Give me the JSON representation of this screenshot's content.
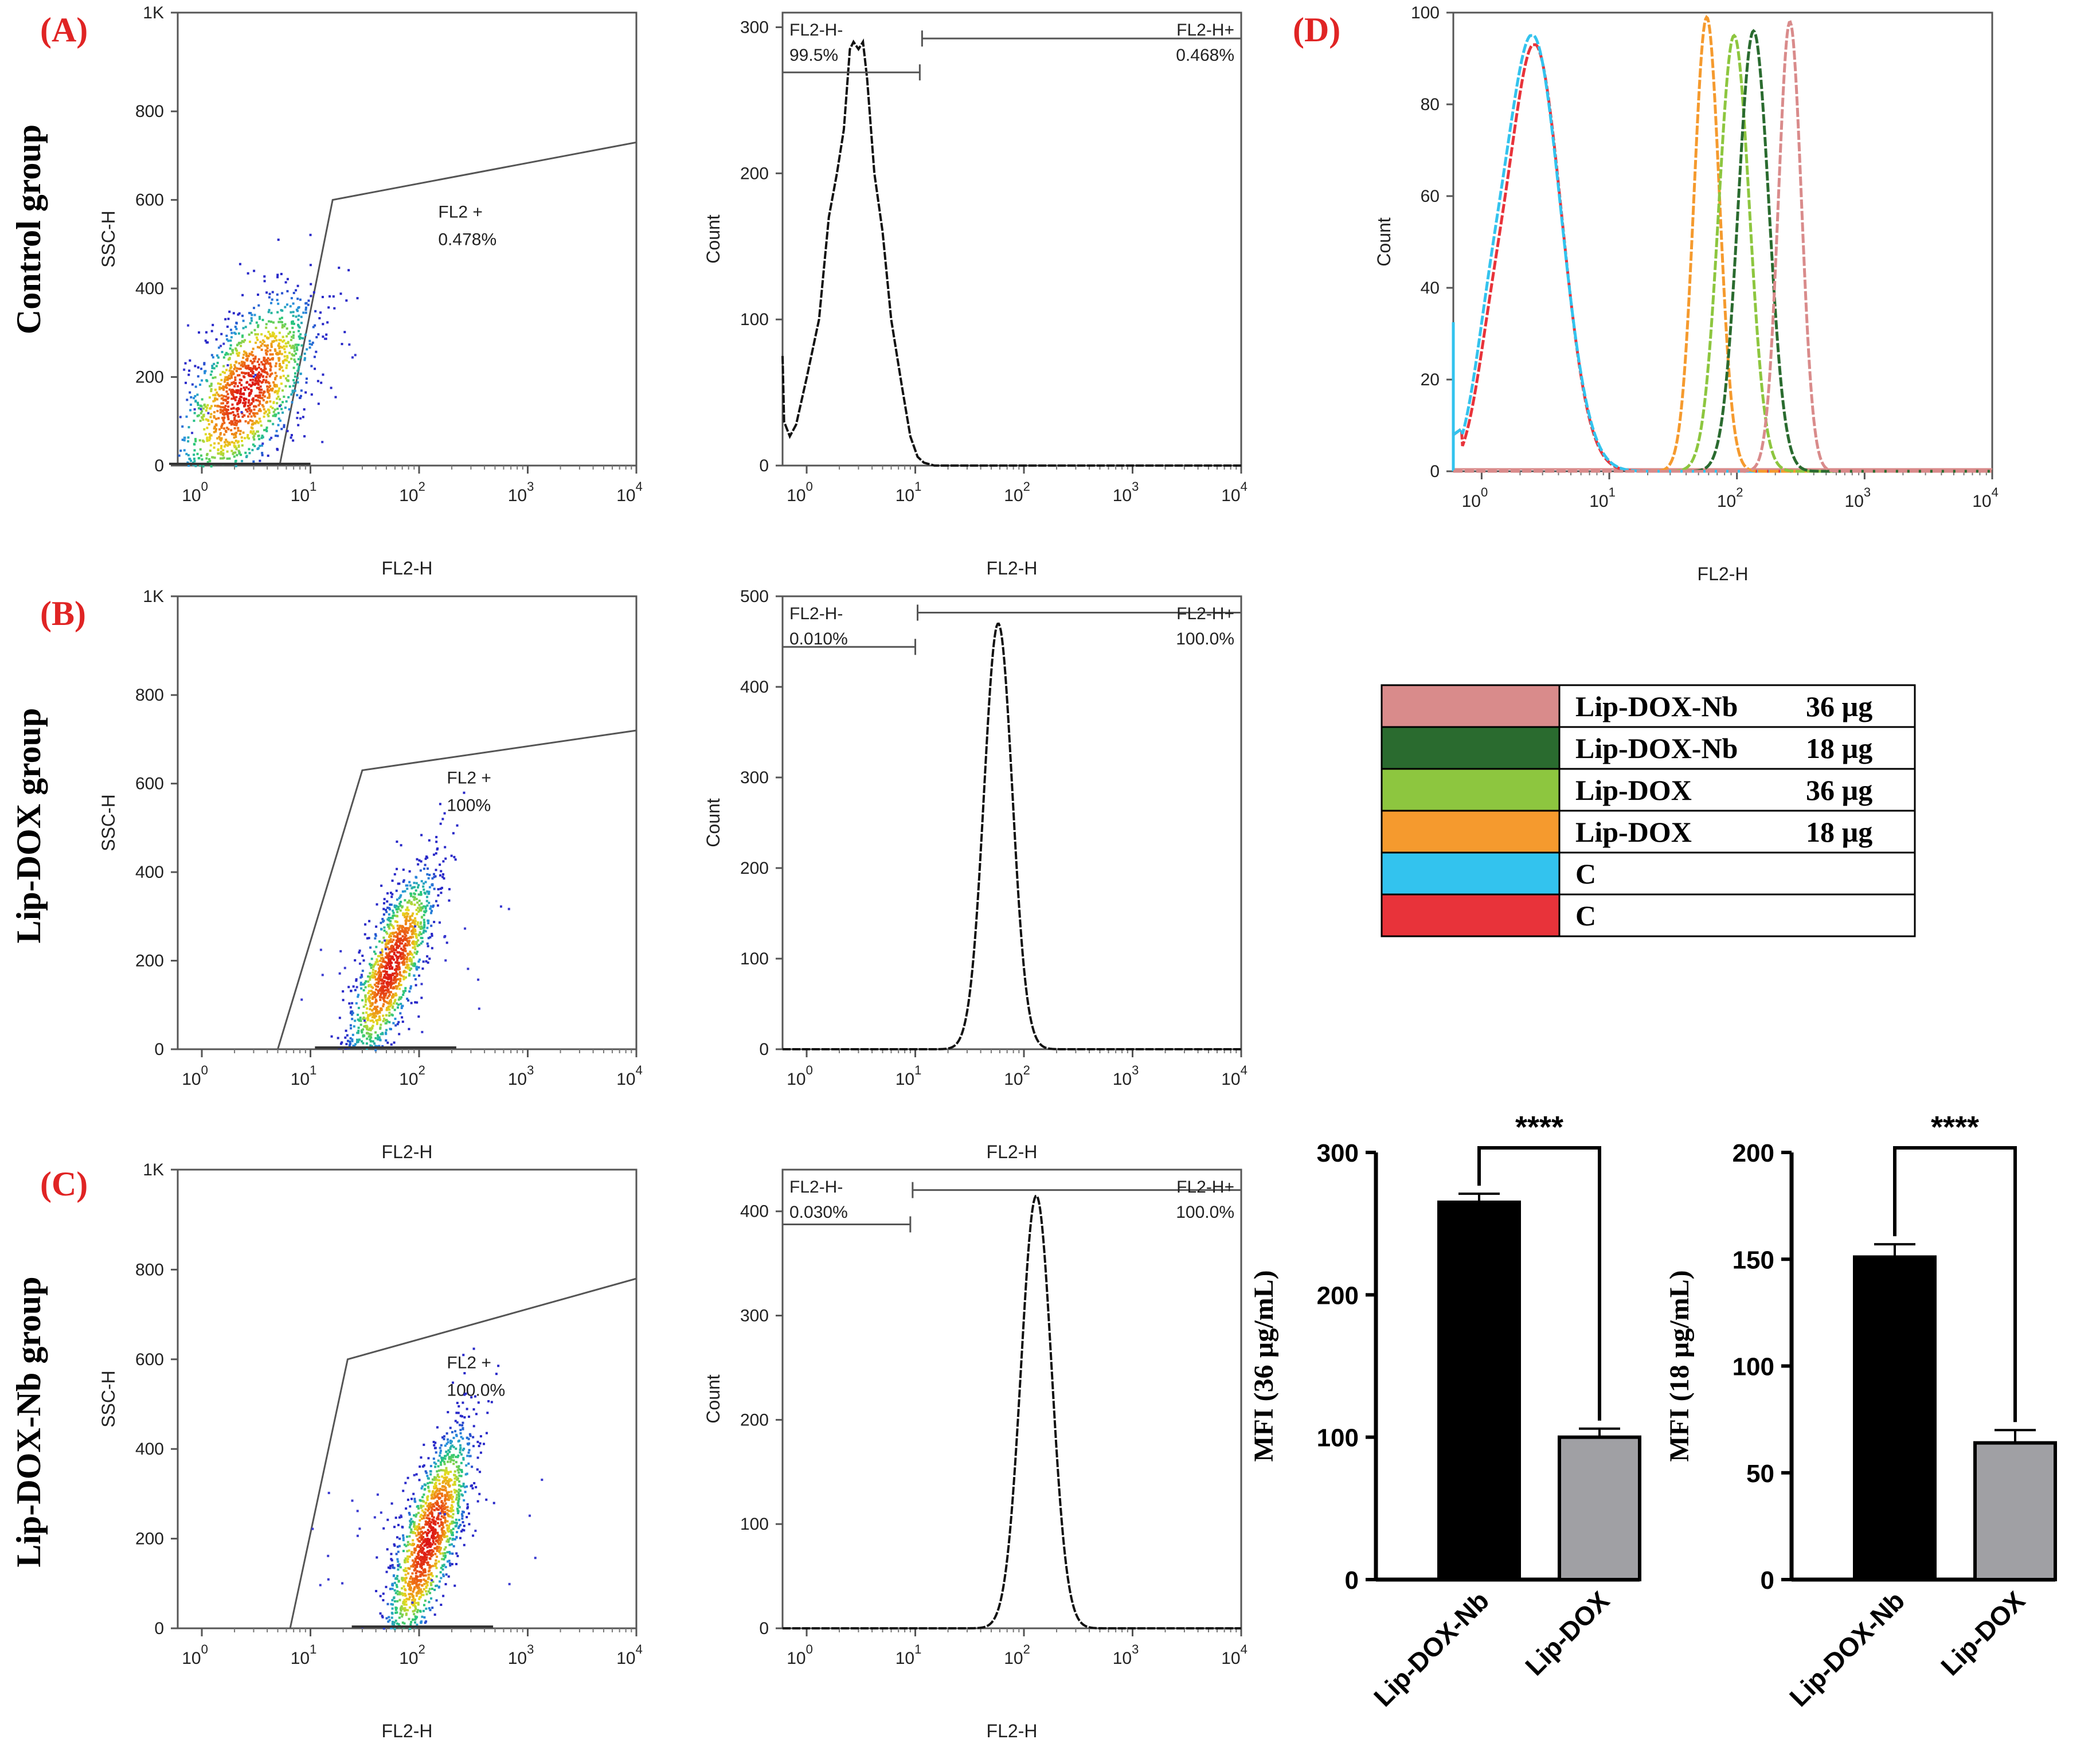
{
  "panel_labels": {
    "a": "(A)",
    "b": "(B)",
    "c": "(C)",
    "d": "(D)"
  },
  "row_labels": [
    "Control group",
    "Lip-DOX group",
    "Lip-DOX-Nb group"
  ],
  "colors": {
    "panel_label": "#e02424",
    "c_red": "#e8333a",
    "c_blue": "#33c3ee",
    "lipdox18": "#f59a2e",
    "lipdox36": "#8dc63f",
    "lipdoxnb18": "#2a6b2f",
    "lipdoxnb36": "#d98b8b",
    "bar_nb": "#000000",
    "bar_dox": "#a0a0a4"
  },
  "chart_data": [
    {
      "id": "scatter-control",
      "type": "scatter",
      "xlabel": "FL2-H",
      "ylabel": "SSC-H",
      "x_scale": "log",
      "xlim": [
        0.6,
        10000
      ],
      "ylim": [
        0,
        1023
      ],
      "xticks": [
        "10",
        "10",
        "10",
        "10",
        "10"
      ],
      "xtick_exponents": [
        "0",
        "1",
        "2",
        "3",
        "4"
      ],
      "yticks": [
        "0",
        "200",
        "400",
        "600",
        "800",
        "1K"
      ],
      "gate_label": "FL2 +",
      "gate_percent": "0.478%",
      "gate_polygon": [
        [
          5.2,
          0
        ],
        [
          16,
          600
        ],
        [
          10000,
          730
        ],
        [
          10000,
          680
        ]
      ],
      "cluster": {
        "center_x": 2.5,
        "center_y": 170,
        "spread_log_x": 0.32,
        "spread_y": 70,
        "corr": 0.6,
        "n": 1400
      }
    },
    {
      "id": "hist-control",
      "type": "line",
      "xlabel": "FL2-H",
      "ylabel": "Count",
      "x_scale": "log",
      "xlim": [
        0.6,
        10000
      ],
      "ylim": [
        0,
        310
      ],
      "yticks": [
        "0",
        "100",
        "200",
        "300"
      ],
      "xticks": [
        "10",
        "10",
        "10",
        "10",
        "10"
      ],
      "xtick_exponents": [
        "0",
        "1",
        "2",
        "3",
        "4"
      ],
      "neg_label": "FL2-H-",
      "neg_percent": "99.5%",
      "pos_label": "FL2-H+",
      "pos_percent": "0.468%",
      "gate_split": 11,
      "gate_level": 285,
      "x": [
        0.6,
        0.62,
        0.7,
        0.8,
        1.0,
        1.3,
        1.6,
        1.9,
        2.2,
        2.5,
        2.7,
        3.0,
        3.3,
        3.6,
        4.2,
        5.0,
        6.0,
        7.5,
        9.0,
        10.5,
        12,
        15,
        10000
      ],
      "y": [
        75,
        30,
        20,
        28,
        60,
        100,
        170,
        200,
        230,
        285,
        290,
        285,
        290,
        265,
        200,
        160,
        100,
        55,
        20,
        6,
        2,
        0,
        0
      ]
    },
    {
      "id": "overlay-d",
      "type": "line",
      "xlabel": "FL2-H",
      "ylabel": "Count",
      "x_scale": "log",
      "xlim": [
        0.6,
        10000
      ],
      "ylim": [
        0,
        100
      ],
      "yticks": [
        "0",
        "20",
        "40",
        "60",
        "80",
        "100"
      ],
      "xticks": [
        "10",
        "10",
        "10",
        "10",
        "10"
      ],
      "xtick_exponents": [
        "0",
        "1",
        "2",
        "3",
        "4"
      ],
      "series": [
        {
          "name": "C (red)",
          "color": "#e8333a",
          "center": 2.6,
          "width": 0.21,
          "peak": 93
        },
        {
          "name": "C (blue)",
          "color": "#33c3ee",
          "center": 2.5,
          "width": 0.22,
          "peak": 95
        },
        {
          "name": "Lip-DOX 18 µg",
          "color": "#f59a2e",
          "center": 58,
          "width": 0.1,
          "peak": 99
        },
        {
          "name": "Lip-DOX 36 µg",
          "color": "#8dc63f",
          "center": 95,
          "width": 0.12,
          "peak": 95
        },
        {
          "name": "Lip-DOX-Nb 18 µg",
          "color": "#2a6b2f",
          "center": 135,
          "width": 0.12,
          "peak": 96
        },
        {
          "name": "Lip-DOX-Nb 36 µg",
          "color": "#d98b8b",
          "center": 260,
          "width": 0.09,
          "peak": 98
        }
      ]
    },
    {
      "id": "scatter-lipdox",
      "type": "scatter",
      "xlabel": "FL2-H",
      "ylabel": "SSC-H",
      "x_scale": "log",
      "xlim": [
        0.6,
        10000
      ],
      "ylim": [
        0,
        1023
      ],
      "xticks": [
        "10",
        "10",
        "10",
        "10",
        "10"
      ],
      "xtick_exponents": [
        "0",
        "1",
        "2",
        "3",
        "4"
      ],
      "yticks": [
        "0",
        "200",
        "400",
        "600",
        "800",
        "1K"
      ],
      "gate_label": "FL2 +",
      "gate_percent": "100%",
      "gate_polygon": [
        [
          5,
          0
        ],
        [
          30,
          630
        ],
        [
          10000,
          720
        ],
        [
          10000,
          540
        ]
      ],
      "cluster": {
        "center_x": 55,
        "center_y": 190,
        "spread_log_x": 0.2,
        "spread_y": 70,
        "corr": 0.75,
        "n": 1300
      }
    },
    {
      "id": "hist-lipdox",
      "type": "line",
      "xlabel": "FL2-H",
      "ylabel": "Count",
      "x_scale": "log",
      "xlim": [
        0.6,
        10000
      ],
      "ylim": [
        0,
        500
      ],
      "yticks": [
        "0",
        "100",
        "200",
        "300",
        "400",
        "500"
      ],
      "xticks": [
        "10",
        "10",
        "10",
        "10",
        "10"
      ],
      "xtick_exponents": [
        "0",
        "1",
        "2",
        "3",
        "4"
      ],
      "neg_label": "FL2-H-",
      "neg_percent": "0.010%",
      "pos_label": "FL2-H+",
      "pos_percent": "100.0%",
      "gate_split": 10,
      "gate_level": 470,
      "center": 58,
      "width": 0.13,
      "peak": 470
    },
    {
      "id": "scatter-lipdoxnb",
      "type": "scatter",
      "xlabel": "FL2-H",
      "ylabel": "SSC-H",
      "x_scale": "log",
      "xlim": [
        0.6,
        10000
      ],
      "ylim": [
        0,
        1023
      ],
      "xticks": [
        "10",
        "10",
        "10",
        "10",
        "10"
      ],
      "xtick_exponents": [
        "0",
        "1",
        "2",
        "3",
        "4"
      ],
      "yticks": [
        "0",
        "200",
        "400",
        "600",
        "800",
        "1K"
      ],
      "gate_label": "FL2 +",
      "gate_percent": "100.0%",
      "gate_polygon": [
        [
          6.5,
          0
        ],
        [
          22,
          600
        ],
        [
          10000,
          780
        ],
        [
          10000,
          680
        ]
      ],
      "cluster": {
        "center_x": 120,
        "center_y": 200,
        "spread_log_x": 0.2,
        "spread_y": 80,
        "corr": 0.75,
        "n": 1400
      }
    },
    {
      "id": "hist-lipdoxnb",
      "type": "line",
      "xlabel": "FL2-H",
      "ylabel": "Count",
      "x_scale": "log",
      "xlim": [
        0.6,
        10000
      ],
      "ylim": [
        0,
        440
      ],
      "yticks": [
        "0",
        "100",
        "200",
        "300",
        "400"
      ],
      "xticks": [
        "10",
        "10",
        "10",
        "10",
        "10"
      ],
      "xtick_exponents": [
        "0",
        "1",
        "2",
        "3",
        "4"
      ],
      "neg_label": "FL2-H-",
      "neg_percent": "0.030%",
      "pos_label": "FL2-H+",
      "pos_percent": "100.0%",
      "gate_split": 9,
      "gate_level": 410,
      "center": 130,
      "width": 0.14,
      "peak": 415
    },
    {
      "id": "bar-36",
      "type": "bar",
      "categories": [
        "Lip-DOX-Nb",
        "Lip-DOX"
      ],
      "values": [
        265,
        100
      ],
      "errors": [
        6,
        6
      ],
      "ylabel": "MFI (36 µg/mL)",
      "ylim": [
        0,
        300
      ],
      "yticks": [
        "0",
        "100",
        "200",
        "300"
      ],
      "significance": "****"
    },
    {
      "id": "bar-18",
      "type": "bar",
      "categories": [
        "Lip-DOX-Nb",
        "Lip-DOX"
      ],
      "values": [
        151,
        64
      ],
      "errors": [
        6,
        6
      ],
      "ylabel": "MFI (18 µg/mL)",
      "ylim": [
        0,
        200
      ],
      "yticks": [
        "0",
        "50",
        "100",
        "150",
        "200"
      ],
      "significance": "****"
    }
  ],
  "legend": [
    {
      "name": "Lip-DOX-Nb",
      "dose": "36 µg",
      "color": "#d98b8b"
    },
    {
      "name": "Lip-DOX-Nb",
      "dose": "18 µg",
      "color": "#2a6b2f"
    },
    {
      "name": "Lip-DOX",
      "dose": "36 µg",
      "color": "#8dc63f"
    },
    {
      "name": "Lip-DOX",
      "dose": "18 µg",
      "color": "#f59a2e"
    },
    {
      "name": "C",
      "dose": "",
      "color": "#33c3ee"
    },
    {
      "name": "C",
      "dose": "",
      "color": "#e8333a"
    }
  ]
}
